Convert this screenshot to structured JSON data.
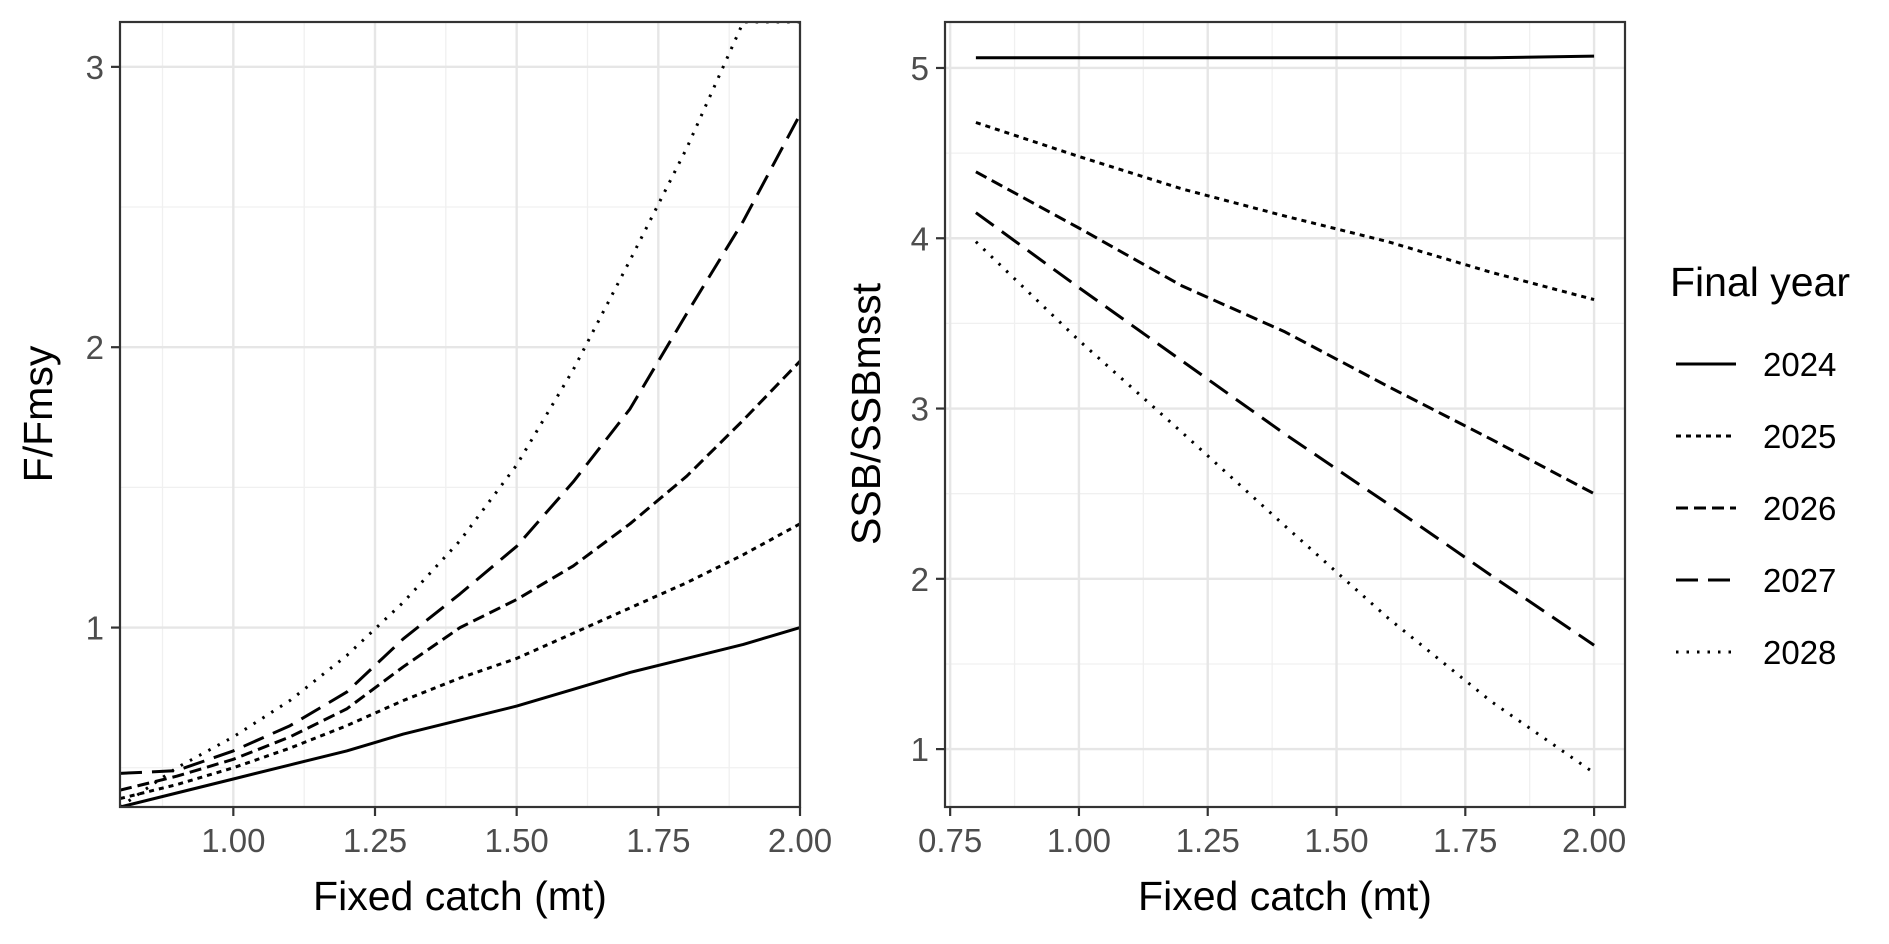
{
  "chart_data": [
    {
      "type": "line",
      "xlabel": "Fixed catch (mt)",
      "ylabel": "F/Fmsy",
      "xlim": [
        0.8,
        2.0
      ],
      "ylim": [
        0.36,
        3.16
      ],
      "x_ticks": [
        1.0,
        1.25,
        1.5,
        1.75,
        2.0
      ],
      "x_tick_labels": [
        "1.00",
        "1.25",
        "1.50",
        "1.75",
        "2.00"
      ],
      "y_ticks": [
        1,
        2,
        3
      ],
      "y_tick_labels": [
        "1",
        "2",
        "3"
      ],
      "grid": true,
      "x": [
        0.8,
        0.9,
        1.0,
        1.1,
        1.2,
        1.3,
        1.4,
        1.5,
        1.6,
        1.7,
        1.8,
        1.9,
        2.0
      ],
      "series": [
        {
          "name": "2024",
          "dash": "solid",
          "values": [
            0.36,
            0.41,
            0.46,
            0.51,
            0.56,
            0.62,
            0.67,
            0.72,
            0.78,
            0.84,
            0.89,
            0.94,
            1.0
          ]
        },
        {
          "name": "2025",
          "dash": "dotted-short",
          "values": [
            0.39,
            0.44,
            0.5,
            0.57,
            0.65,
            0.74,
            0.82,
            0.89,
            0.98,
            1.07,
            1.16,
            1.26,
            1.37
          ]
        },
        {
          "name": "2026",
          "dash": "dashed",
          "values": [
            0.42,
            0.47,
            0.53,
            0.61,
            0.71,
            0.86,
            1.0,
            1.1,
            1.22,
            1.37,
            1.54,
            1.74,
            1.95
          ]
        },
        {
          "name": "2027",
          "dash": "long-dashed",
          "values": [
            0.48,
            0.49,
            0.56,
            0.65,
            0.77,
            0.96,
            1.12,
            1.29,
            1.52,
            1.78,
            2.12,
            2.45,
            2.83
          ]
        },
        {
          "name": "2028",
          "dash": "dotted",
          "values": [
            0.36,
            0.5,
            0.61,
            0.74,
            0.9,
            1.09,
            1.31,
            1.58,
            1.92,
            2.31,
            2.71,
            3.16,
            3.16
          ]
        }
      ]
    },
    {
      "type": "line",
      "xlabel": "Fixed catch (mt)",
      "ylabel": "SSB/SSBmsst",
      "xlim": [
        0.74,
        2.06
      ],
      "ylim": [
        0.66,
        5.27
      ],
      "x_ticks": [
        0.75,
        1.0,
        1.25,
        1.5,
        1.75,
        2.0
      ],
      "x_tick_labels": [
        "0.75",
        "1.00",
        "1.25",
        "1.50",
        "1.75",
        "2.00"
      ],
      "y_ticks": [
        1,
        2,
        3,
        4,
        5
      ],
      "y_tick_labels": [
        "1",
        "2",
        "3",
        "4",
        "5"
      ],
      "grid": true,
      "x": [
        0.8,
        1.0,
        1.2,
        1.4,
        1.6,
        1.8,
        2.0
      ],
      "series": [
        {
          "name": "2024",
          "dash": "solid",
          "values": [
            5.06,
            5.06,
            5.06,
            5.06,
            5.06,
            5.06,
            5.07
          ]
        },
        {
          "name": "2025",
          "dash": "dotted-short",
          "values": [
            4.68,
            4.48,
            4.29,
            4.13,
            3.98,
            3.8,
            3.64
          ]
        },
        {
          "name": "2026",
          "dash": "dashed",
          "values": [
            4.39,
            4.06,
            3.72,
            3.45,
            3.13,
            2.82,
            2.5
          ]
        },
        {
          "name": "2027",
          "dash": "long-dashed",
          "values": [
            4.15,
            3.71,
            3.28,
            2.85,
            2.44,
            2.02,
            1.61
          ]
        },
        {
          "name": "2028",
          "dash": "dotted",
          "values": [
            3.98,
            3.4,
            2.86,
            2.31,
            1.77,
            1.28,
            0.86
          ]
        }
      ]
    }
  ],
  "legend": {
    "title": "Final year",
    "entries": [
      "2024",
      "2025",
      "2026",
      "2027",
      "2028"
    ]
  }
}
